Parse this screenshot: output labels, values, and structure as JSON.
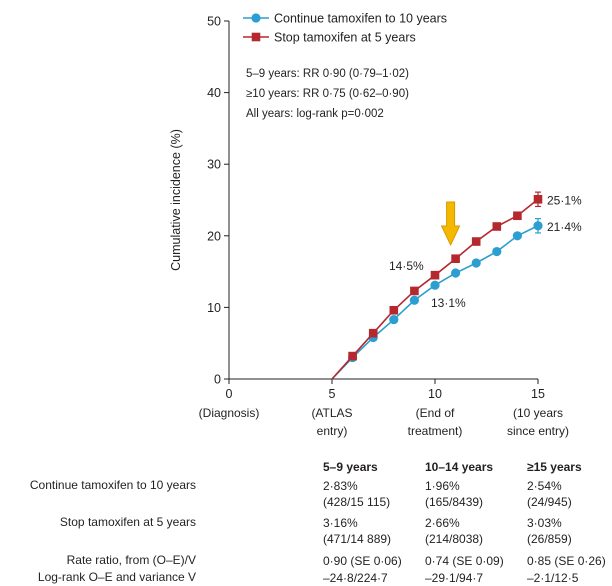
{
  "chart_data": {
    "type": "line",
    "ylabel": "Cumulative incidence (%)",
    "ylim": [
      0,
      50
    ],
    "yticks": [
      "0",
      "10",
      "20",
      "30",
      "40",
      "50"
    ],
    "xlim": [
      0,
      15
    ],
    "xticks": [
      {
        "value": 0,
        "label": "0",
        "sub": [
          "(Diagnosis)"
        ]
      },
      {
        "value": 5,
        "label": "5",
        "sub": [
          "(ATLAS",
          "entry)"
        ]
      },
      {
        "value": 10,
        "label": "10",
        "sub": [
          "(End of",
          "treatment)"
        ]
      },
      {
        "value": 15,
        "label": "15",
        "sub": [
          "(10 years",
          "since entry)"
        ]
      }
    ],
    "series": [
      {
        "name": "Continue tamoxifen to 10 years",
        "color": "#2a9fd0",
        "marker": "circle",
        "x": [
          5,
          6,
          7,
          8,
          9,
          10,
          11,
          12,
          13,
          14,
          15
        ],
        "y": [
          0,
          3.0,
          5.8,
          8.3,
          11.0,
          13.1,
          14.8,
          16.2,
          17.8,
          20.0,
          21.4
        ],
        "end_error": 1.0
      },
      {
        "name": "Stop tamoxifen at 5 years",
        "color": "#b5282e",
        "marker": "square",
        "x": [
          5,
          6,
          7,
          8,
          9,
          10,
          11,
          12,
          13,
          14,
          15
        ],
        "y": [
          0,
          3.2,
          6.4,
          9.6,
          12.3,
          14.5,
          16.8,
          19.2,
          21.3,
          22.8,
          25.1
        ],
        "end_error": 1.0
      }
    ],
    "annotations": [
      {
        "text": "14·5%",
        "x": 10,
        "y": 14.5,
        "series": 1
      },
      {
        "text": "13·1%",
        "x": 10,
        "y": 13.1,
        "series": 0
      },
      {
        "text": "25·1%",
        "x": 15,
        "y": 25.1,
        "series": 1
      },
      {
        "text": "21·4%",
        "x": 15,
        "y": 21.4,
        "series": 0
      }
    ],
    "arrow": {
      "x": 11,
      "color": "#f5b800"
    },
    "stats": [
      "5–9 years: RR 0·90 (0·79–1·02)",
      "≥10 years: RR 0·75 (0·62–0·90)",
      "All years: log-rank p=0·002"
    ],
    "legend_position": "top-left"
  },
  "table": {
    "headers": [
      "5–9 years",
      "10–14 years",
      "≥15 years"
    ],
    "rows": [
      {
        "label": "Continue tamoxifen to 10 years",
        "cells": [
          [
            "2·83%",
            "(428/15 115)"
          ],
          [
            "1·96%",
            "(165/8439)"
          ],
          [
            "2·54%",
            "(24/945)"
          ]
        ]
      },
      {
        "label": "Stop tamoxifen at 5 years",
        "cells": [
          [
            "3·16%",
            "(471/14 889)"
          ],
          [
            "2·66%",
            "(214/8038)"
          ],
          [
            "3·03%",
            "(26/859)"
          ]
        ]
      },
      {
        "label": "Rate ratio, from (O–E)/V",
        "cells": [
          [
            "0·90 (SE 0·06)"
          ],
          [
            "0·74 (SE 0·09)"
          ],
          [
            "0·85 (SE 0·26)"
          ]
        ]
      },
      {
        "label": "Log-rank O–E and variance V",
        "cells": [
          [
            "–24·8/224·7"
          ],
          [
            "–29·1/94·7"
          ],
          [
            "–2·1/12·5"
          ]
        ]
      }
    ]
  }
}
